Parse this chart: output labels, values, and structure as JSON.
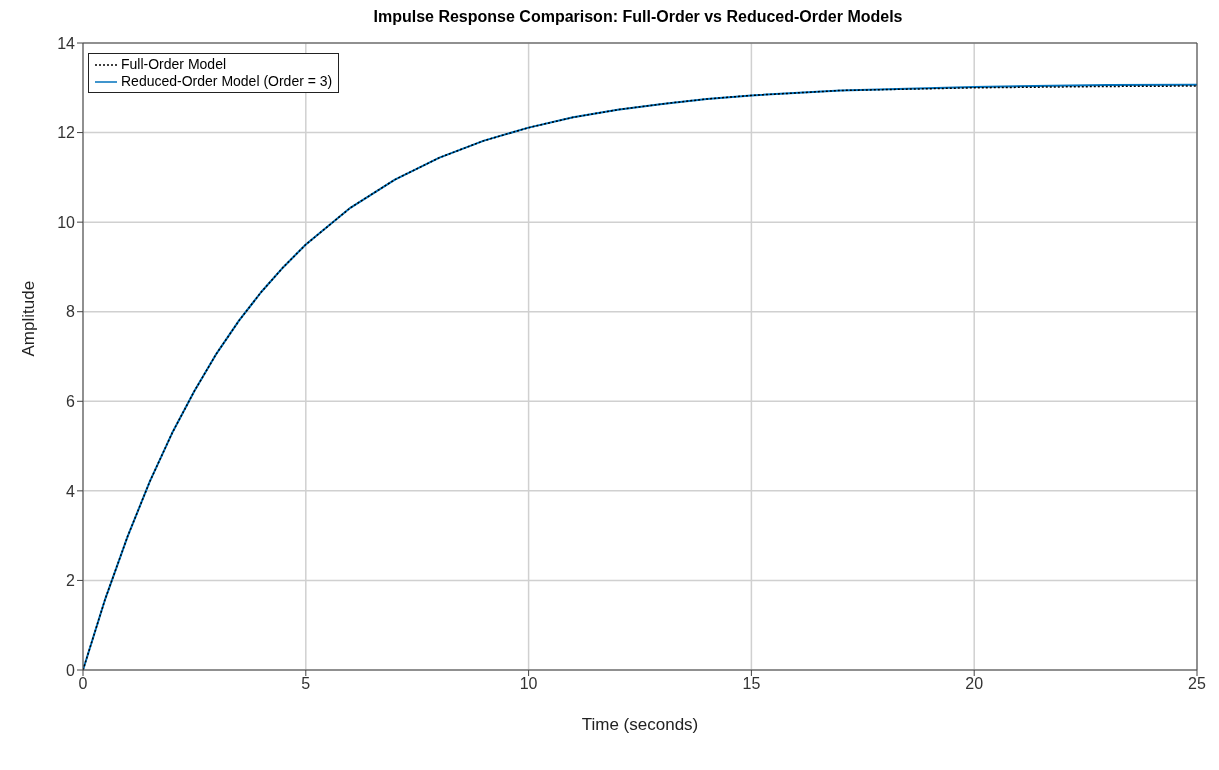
{
  "chart_data": {
    "type": "line",
    "title": "Impulse Response Comparison: Full-Order vs Reduced-Order Models",
    "xlabel": "Time (seconds)",
    "ylabel": "Amplitude",
    "x": [
      0,
      0.5,
      1,
      1.5,
      2,
      2.5,
      3,
      3.5,
      4,
      4.5,
      5,
      6,
      7,
      8,
      9,
      10,
      11,
      12,
      13,
      14,
      15,
      17,
      20,
      23,
      25
    ],
    "series": [
      {
        "name": "Full-Order Model",
        "color": "#000000",
        "line_style": "dotted",
        "values": [
          0,
          1.59,
          2.98,
          4.21,
          5.29,
          6.23,
          7.07,
          7.8,
          8.44,
          9.0,
          9.5,
          10.32,
          10.95,
          11.44,
          11.82,
          12.11,
          12.34,
          12.51,
          12.64,
          12.75,
          12.83,
          12.94,
          13.0,
          13.03,
          13.04
        ]
      },
      {
        "name": "Reduced-Order Model (Order = 3)",
        "color": "#0072bd",
        "line_style": "solid",
        "values": [
          0,
          1.59,
          2.98,
          4.21,
          5.29,
          6.23,
          7.07,
          7.8,
          8.44,
          9.0,
          9.5,
          10.32,
          10.95,
          11.44,
          11.82,
          12.11,
          12.34,
          12.51,
          12.64,
          12.75,
          12.83,
          12.94,
          13.02,
          13.06,
          13.07
        ]
      }
    ],
    "xlim": [
      0,
      25
    ],
    "xticks": [
      0,
      5,
      10,
      15,
      20,
      25
    ],
    "ylim": [
      0,
      14
    ],
    "yticks": [
      0,
      2,
      4,
      6,
      8,
      10,
      12,
      14
    ],
    "grid": true,
    "legend": "top left",
    "marker": "none"
  }
}
